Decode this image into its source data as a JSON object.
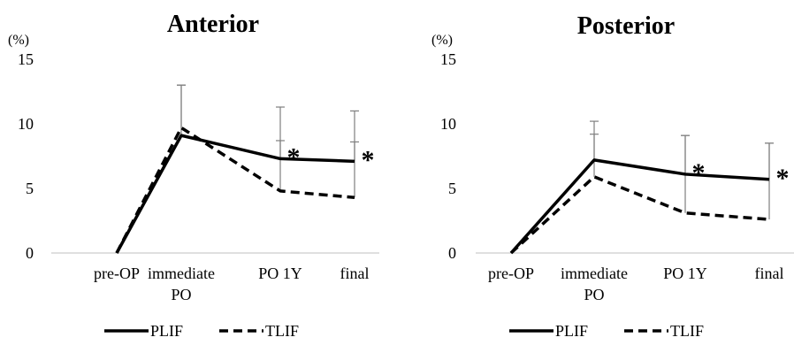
{
  "chart_data": [
    {
      "type": "line",
      "title": "Anterior",
      "y_unit": "(%)",
      "ylim": [
        0,
        15
      ],
      "y_ticks": [
        "0",
        "5",
        "10",
        "15"
      ],
      "categories": [
        [
          "pre-OP"
        ],
        [
          "immediate",
          "PO"
        ],
        [
          "PO 1Y"
        ],
        [
          "final"
        ]
      ],
      "grid": false,
      "legend_position": "bottom",
      "series": [
        {
          "name": "PLIF",
          "style": "solid",
          "values": [
            0,
            9.1,
            7.3,
            7.1
          ],
          "error": [
            null,
            3.9,
            4.0,
            3.9
          ]
        },
        {
          "name": "TLIF",
          "style": "dashed",
          "values": [
            0,
            9.7,
            4.8,
            4.3
          ],
          "error": [
            null,
            3.3,
            3.9,
            4.3
          ]
        }
      ],
      "annotations": [
        {
          "text": "*",
          "category": 2,
          "y": 7.3
        },
        {
          "text": "*",
          "category": 3,
          "y": 7.1
        }
      ]
    },
    {
      "type": "line",
      "title": "Posterior",
      "y_unit": "(%)",
      "ylim": [
        0,
        15
      ],
      "y_ticks": [
        "0",
        "5",
        "10",
        "15"
      ],
      "categories": [
        [
          "pre-OP"
        ],
        [
          "immediate",
          "PO"
        ],
        [
          "PO 1Y"
        ],
        [
          "final"
        ]
      ],
      "grid": false,
      "legend_position": "bottom",
      "series": [
        {
          "name": "PLIF",
          "style": "solid",
          "values": [
            0,
            7.2,
            6.1,
            5.7
          ],
          "error": [
            null,
            3.0,
            3.0,
            2.8
          ]
        },
        {
          "name": "TLIF",
          "style": "dashed",
          "values": [
            0,
            5.9,
            3.1,
            2.6
          ],
          "error": [
            null,
            3.3,
            6.0,
            5.9
          ]
        }
      ],
      "annotations": [
        {
          "text": "*",
          "category": 2,
          "y": 6.1
        },
        {
          "text": "*",
          "category": 3,
          "y": 5.7
        }
      ]
    }
  ]
}
